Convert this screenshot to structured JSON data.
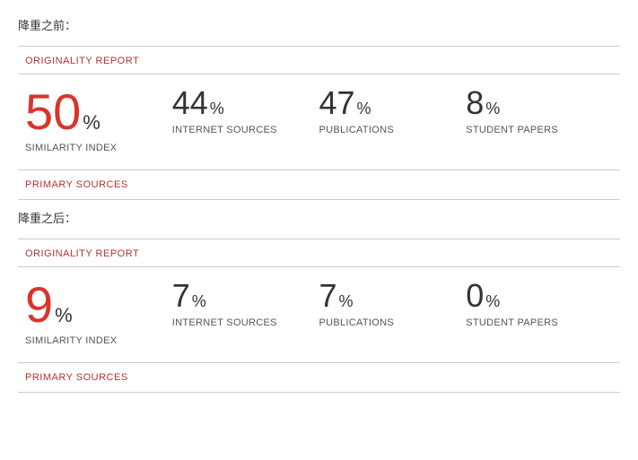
{
  "before": {
    "label": "降重之前：",
    "report_title": "ORIGINALITY REPORT",
    "report_title_color": "#b5332e",
    "primary_sources": "PRIMARY SOURCES",
    "primary_sources_color": "#b5332e",
    "metrics": [
      {
        "value": "50",
        "percent": "%",
        "label": "SIMILARITY INDEX",
        "number_color": "#d9352c",
        "number_size": "56px",
        "percent_size": "22px",
        "percent_color": "#333333"
      },
      {
        "value": "44",
        "percent": "%",
        "label": "INTERNET SOURCES",
        "number_color": "#333333",
        "number_size": "36px",
        "percent_size": "18px",
        "percent_color": "#333333"
      },
      {
        "value": "47",
        "percent": "%",
        "label": "PUBLICATIONS",
        "number_color": "#333333",
        "number_size": "36px",
        "percent_size": "18px",
        "percent_color": "#333333"
      },
      {
        "value": "8",
        "percent": "%",
        "label": "STUDENT PAPERS",
        "number_color": "#333333",
        "number_size": "36px",
        "percent_size": "18px",
        "percent_color": "#333333"
      }
    ]
  },
  "after": {
    "label": "降重之后：",
    "report_title": "ORIGINALITY REPORT",
    "report_title_color": "#b5332e",
    "primary_sources": "PRIMARY SOURCES",
    "primary_sources_color": "#b5332e",
    "metrics": [
      {
        "value": "9",
        "percent": "%",
        "label": "SIMILARITY INDEX",
        "number_color": "#d9352c",
        "number_size": "56px",
        "percent_size": "22px",
        "percent_color": "#333333"
      },
      {
        "value": "7",
        "percent": "%",
        "label": "INTERNET SOURCES",
        "number_color": "#333333",
        "number_size": "36px",
        "percent_size": "18px",
        "percent_color": "#333333"
      },
      {
        "value": "7",
        "percent": "%",
        "label": "PUBLICATIONS",
        "number_color": "#333333",
        "number_size": "36px",
        "percent_size": "18px",
        "percent_color": "#333333"
      },
      {
        "value": "0",
        "percent": "%",
        "label": "STUDENT PAPERS",
        "number_color": "#333333",
        "number_size": "36px",
        "percent_size": "18px",
        "percent_color": "#333333"
      }
    ]
  }
}
